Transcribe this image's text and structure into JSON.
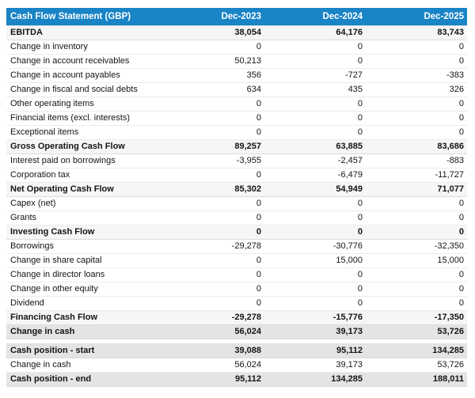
{
  "colors": {
    "header_bg": "#1984c6",
    "header_text": "#ffffff",
    "subtotal_row_bg": "#f6f6f6",
    "total_row_bg": "#e4e4e4"
  },
  "chart_data": {
    "type": "table",
    "title": "Cash Flow Statement (GBP)",
    "columns": [
      "Dec-2023",
      "Dec-2024",
      "Dec-2025"
    ],
    "rows": [
      {
        "label": "EBITDA",
        "values": [
          38054,
          64176,
          83743
        ],
        "emphasis": "subtotal"
      },
      {
        "label": "Change in inventory",
        "values": [
          0,
          0,
          0
        ]
      },
      {
        "label": "Change in account receivables",
        "values": [
          50213,
          0,
          0
        ]
      },
      {
        "label": "Change in account payables",
        "values": [
          356,
          -727,
          -383
        ]
      },
      {
        "label": "Change in fiscal and social debts",
        "values": [
          634,
          435,
          326
        ]
      },
      {
        "label": "Other operating items",
        "values": [
          0,
          0,
          0
        ]
      },
      {
        "label": "Financial items (excl. interests)",
        "values": [
          0,
          0,
          0
        ]
      },
      {
        "label": "Exceptional items",
        "values": [
          0,
          0,
          0
        ]
      },
      {
        "label": "Gross Operating Cash Flow",
        "values": [
          89257,
          63885,
          83686
        ],
        "emphasis": "subtotal"
      },
      {
        "label": "Interest paid on borrowings",
        "values": [
          -3955,
          -2457,
          -883
        ]
      },
      {
        "label": "Corporation tax",
        "values": [
          0,
          -6479,
          -11727
        ]
      },
      {
        "label": "Net Operating Cash Flow",
        "values": [
          85302,
          54949,
          71077
        ],
        "emphasis": "subtotal"
      },
      {
        "label": "Capex (net)",
        "values": [
          0,
          0,
          0
        ]
      },
      {
        "label": "Grants",
        "values": [
          0,
          0,
          0
        ]
      },
      {
        "label": "Investing Cash Flow",
        "values": [
          0,
          0,
          0
        ],
        "emphasis": "subtotal"
      },
      {
        "label": "Borrowings",
        "values": [
          -29278,
          -30776,
          -32350
        ]
      },
      {
        "label": "Change in share capital",
        "values": [
          0,
          15000,
          15000
        ]
      },
      {
        "label": "Change in director loans",
        "values": [
          0,
          0,
          0
        ]
      },
      {
        "label": "Change in other equity",
        "values": [
          0,
          0,
          0
        ]
      },
      {
        "label": "Dividend",
        "values": [
          0,
          0,
          0
        ]
      },
      {
        "label": "Financing Cash Flow",
        "values": [
          -29278,
          -15776,
          -17350
        ],
        "emphasis": "subtotal"
      },
      {
        "label": "Change in cash",
        "values": [
          56024,
          39173,
          53726
        ],
        "emphasis": "total"
      },
      {
        "spacer": true
      },
      {
        "label": "Cash position - start",
        "values": [
          39088,
          95112,
          134285
        ],
        "emphasis": "total"
      },
      {
        "label": "Change in cash",
        "values": [
          56024,
          39173,
          53726
        ]
      },
      {
        "label": "Cash position - end",
        "values": [
          95112,
          134285,
          188011
        ],
        "emphasis": "total"
      }
    ]
  }
}
